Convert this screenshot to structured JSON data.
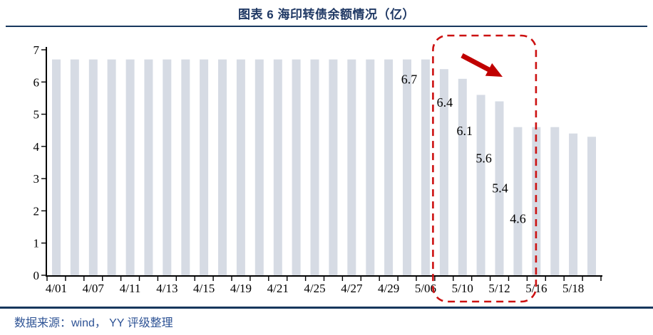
{
  "header": {
    "title": "图表 6 海印转债余额情况（亿）"
  },
  "footer": {
    "source": "数据来源：wind， YY 评级整理"
  },
  "colors": {
    "title_text": "#1F3864",
    "divider": "#17375D",
    "bar_fill": "#D6DBE4",
    "axis": "#000000",
    "dash_red": "#CC1111",
    "arrow_red": "#C00000",
    "source_text": "#2E5395"
  },
  "chart_data": {
    "type": "bar",
    "title": "图表 6 海印转债余额情况（亿）",
    "xlabel": "",
    "ylabel": "",
    "ylim": [
      0,
      7
    ],
    "y_ticks": [
      0,
      1,
      2,
      3,
      4,
      5,
      6,
      7
    ],
    "grid": false,
    "legend": false,
    "bar_count": 30,
    "values": [
      6.7,
      6.7,
      6.7,
      6.7,
      6.7,
      6.7,
      6.7,
      6.7,
      6.7,
      6.7,
      6.7,
      6.7,
      6.7,
      6.7,
      6.7,
      6.7,
      6.7,
      6.7,
      6.7,
      6.7,
      6.7,
      6.4,
      6.1,
      5.6,
      5.4,
      4.6,
      4.6,
      4.6,
      4.4,
      4.3
    ],
    "x_tick_labels": [
      "4/01",
      "4/07",
      "4/11",
      "4/13",
      "4/15",
      "4/19",
      "4/21",
      "4/25",
      "4/27",
      "4/29",
      "5/06",
      "5/10",
      "5/12",
      "5/16",
      "5/18"
    ],
    "x_label_bar_indices": [
      0,
      2,
      4,
      6,
      8,
      10,
      12,
      14,
      16,
      18,
      20,
      22,
      24,
      26,
      28
    ],
    "value_labels": [
      {
        "bar_index": 20,
        "text": "6.7"
      },
      {
        "bar_index": 21,
        "text": "6.4"
      },
      {
        "bar_index": 22,
        "text": "6.1"
      },
      {
        "bar_index": 23,
        "text": "5.6"
      },
      {
        "bar_index": 24,
        "text": "5.4"
      },
      {
        "bar_index": 25,
        "text": "4.6"
      }
    ],
    "annotations": {
      "highlight_box": {
        "from_bar_index": 21,
        "to_bar_index": 25,
        "style": "red-dashed-rounded-rect"
      },
      "arrow": {
        "direction": "down-right",
        "color_hex": "#C00000"
      }
    }
  }
}
